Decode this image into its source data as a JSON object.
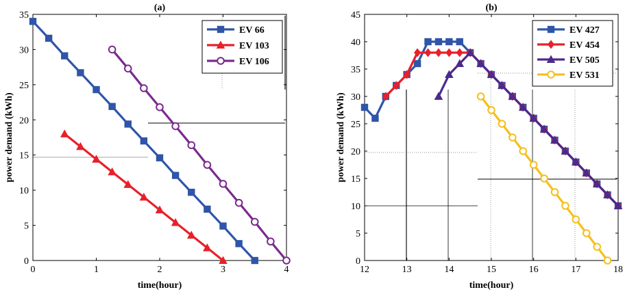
{
  "chart_data": [
    {
      "type": "line",
      "title": "(a)",
      "xlabel": "time(hour)",
      "ylabel": "power demand (kWh)",
      "xlim": [
        0,
        4
      ],
      "ylim": [
        0,
        35
      ],
      "xticks": [
        0,
        1,
        2,
        3,
        4
      ],
      "yticks": [
        0,
        5,
        10,
        15,
        20,
        25,
        30,
        35
      ],
      "grid": false,
      "legend_position": "top-right",
      "series": [
        {
          "name": "EV 66",
          "color": "#2f55a8",
          "marker": "square",
          "x": [
            0,
            0.25,
            0.5,
            0.75,
            1.0,
            1.25,
            1.5,
            1.75,
            2.0,
            2.25,
            2.5,
            2.75,
            3.0,
            3.25,
            3.5
          ],
          "y": [
            34,
            31.6,
            29.1,
            26.7,
            24.3,
            21.9,
            19.4,
            17.0,
            14.6,
            12.1,
            9.7,
            7.3,
            4.9,
            2.4,
            0
          ]
        },
        {
          "name": "EV 103",
          "color": "#e8202a",
          "marker": "triangle",
          "x": [
            0.5,
            0.75,
            1.0,
            1.25,
            1.5,
            1.75,
            2.0,
            2.25,
            2.5,
            2.75,
            3.0
          ],
          "y": [
            18,
            16.2,
            14.4,
            12.6,
            10.8,
            9.0,
            7.2,
            5.4,
            3.6,
            1.8,
            0
          ]
        },
        {
          "name": "EV 106",
          "color": "#7a2b8c",
          "marker": "circle",
          "x": [
            1.25,
            1.5,
            1.75,
            2.0,
            2.25,
            2.5,
            2.75,
            3.0,
            3.25,
            3.5,
            3.75,
            4.0
          ],
          "y": [
            30,
            27.3,
            24.5,
            21.8,
            19.1,
            16.4,
            13.6,
            10.9,
            8.2,
            5.5,
            2.7,
            0
          ]
        }
      ]
    },
    {
      "type": "line",
      "title": "(b)",
      "xlabel": "time(hour)",
      "ylabel": "power demand (kWh)",
      "xlim": [
        12,
        18
      ],
      "ylim": [
        0,
        45
      ],
      "xticks": [
        12,
        13,
        14,
        15,
        16,
        17,
        18
      ],
      "yticks": [
        0,
        5,
        10,
        15,
        20,
        25,
        30,
        35,
        40,
        45
      ],
      "grid": false,
      "legend_position": "top-right",
      "series": [
        {
          "name": "EV 427",
          "color": "#2f55a8",
          "marker": "square",
          "x": [
            12,
            12.25,
            12.5,
            12.75,
            13.0,
            13.25,
            13.5,
            13.75,
            14.0,
            14.25,
            14.5,
            14.75,
            15.0,
            15.25,
            15.5,
            15.75,
            16.0,
            16.25,
            16.5,
            16.75,
            17.0,
            17.25,
            17.5,
            17.75,
            18.0
          ],
          "y": [
            28,
            26,
            30,
            32,
            34,
            36,
            40,
            40,
            40,
            40,
            38,
            36,
            34,
            32,
            30,
            28,
            26,
            24,
            22,
            20,
            18,
            16,
            14,
            12,
            10
          ]
        },
        {
          "name": "EV 454",
          "color": "#e8202a",
          "marker": "diamond",
          "x": [
            12.5,
            12.75,
            13.0,
            13.25,
            13.5,
            13.75,
            14.0,
            14.25,
            14.5,
            14.75,
            15.0,
            15.25,
            15.5,
            15.75,
            16.0,
            16.25,
            16.5,
            16.75,
            17.0,
            17.25,
            17.5,
            17.75,
            18.0
          ],
          "y": [
            30,
            32,
            34,
            38,
            38,
            38,
            38,
            38,
            38,
            36,
            34,
            32,
            30,
            28,
            26,
            24,
            22,
            20,
            18,
            16,
            14,
            12,
            10
          ]
        },
        {
          "name": "EV 505",
          "color": "#4b2a8c",
          "marker": "triangle",
          "x": [
            13.75,
            14.0,
            14.25,
            14.5,
            14.75,
            15.0,
            15.25,
            15.5,
            15.75,
            16.0,
            16.25,
            16.5,
            16.75,
            17.0,
            17.25,
            17.5,
            17.75,
            18.0
          ],
          "y": [
            30,
            34,
            36,
            38,
            36,
            34,
            32,
            30,
            28,
            26,
            24,
            22,
            20,
            18,
            16,
            14,
            12,
            10
          ]
        },
        {
          "name": "EV 531",
          "color": "#f6bf1a",
          "marker": "circle",
          "x": [
            14.75,
            15.0,
            15.25,
            15.5,
            15.75,
            16.0,
            16.25,
            16.5,
            16.75,
            17.0,
            17.25,
            17.5,
            17.75
          ],
          "y": [
            30,
            27.5,
            25,
            22.5,
            20,
            17.5,
            15,
            12.5,
            10,
            7.5,
            5,
            2.5,
            0
          ]
        }
      ]
    }
  ]
}
